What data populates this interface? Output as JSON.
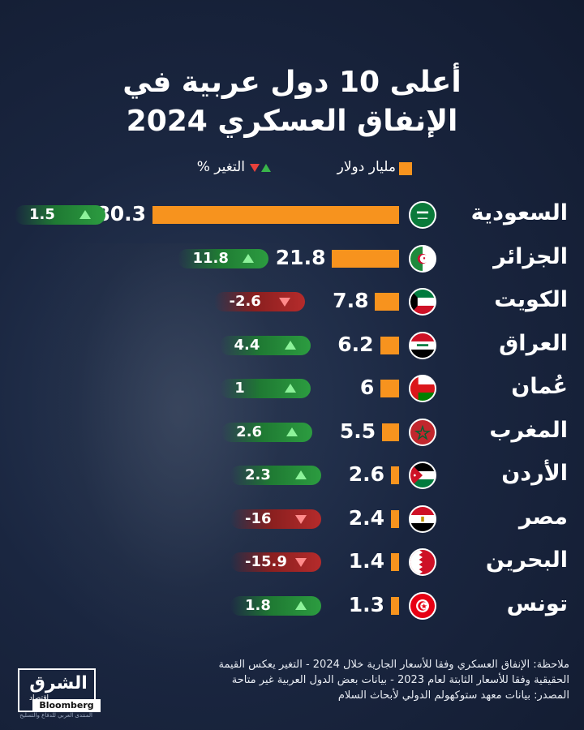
{
  "title_line1": "أعلى 10 دول عربية في",
  "title_line2": "الإنفاق العسكري 2024",
  "legend": {
    "bar_label": "مليار دولار",
    "change_label": "التغير %"
  },
  "colors": {
    "bar": "#f7931e",
    "up": "#39b54a",
    "down": "#e8413b",
    "background": "#1a2640"
  },
  "chart_data": {
    "type": "bar",
    "orientation": "horizontal",
    "unit": "مليار دولار",
    "categories": [
      "السعودية",
      "الجزائر",
      "الكويت",
      "العراق",
      "عُمان",
      "المغرب",
      "الأردن",
      "مصر",
      "البحرين",
      "تونس"
    ],
    "series": [
      {
        "name": "مليار دولار",
        "values": [
          80.3,
          21.8,
          7.8,
          6.2,
          6,
          5.5,
          2.6,
          2.4,
          1.4,
          1.3
        ],
        "labels": [
          "80.3",
          "21.8",
          "7.8",
          "6.2",
          "6",
          "5.5",
          "2.6",
          "2.4",
          "1.4",
          "1.3"
        ]
      },
      {
        "name": "التغير %",
        "values": [
          1.5,
          11.8,
          -2.6,
          4.4,
          1,
          2.6,
          2.3,
          -16,
          -15.9,
          1.8
        ],
        "labels": [
          "1.5",
          "11.8",
          "-2.6",
          "4.4",
          "1",
          "2.6",
          "2.3",
          "-16",
          "-15.9",
          "1.8"
        ]
      }
    ],
    "flags": [
      "saudi-arabia-flag-icon",
      "algeria-flag-icon",
      "kuwait-flag-icon",
      "iraq-flag-icon",
      "oman-flag-icon",
      "morocco-flag-icon",
      "jordan-flag-icon",
      "egypt-flag-icon",
      "bahrain-flag-icon",
      "tunisia-flag-icon"
    ]
  },
  "note": {
    "line1": "ملاحظة: الإنفاق العسكري وفقا للأسعار الجارية خلال 2024 - التغير يعكس القيمة",
    "line2": "الحقيقية وفقا للأسعار الثابتة لعام 2023 - بيانات بعض الدول العربية غير متاحة",
    "line3": "المصدر: بيانات معهد ستوكهولم الدولي لأبحاث السلام"
  },
  "logo": {
    "main": "الشرق",
    "sub": "اقتصاد",
    "with": "مع",
    "brand": "Bloomberg",
    "partner": "المنتدى العربي للدفاع والتسليح"
  }
}
